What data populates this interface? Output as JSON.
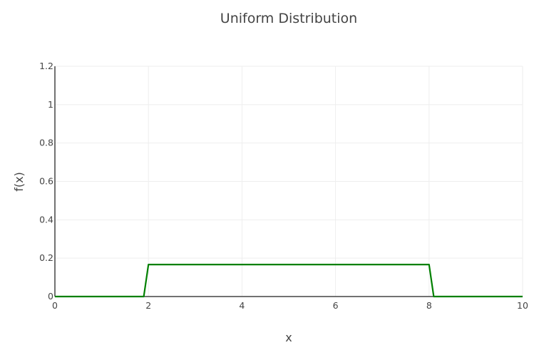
{
  "chart_data": {
    "type": "line",
    "title": "Uniform Distribution",
    "xlabel": "x",
    "ylabel": "f(x)",
    "xlim": [
      0,
      10
    ],
    "ylim": [
      0,
      1.2
    ],
    "x_ticks": [
      0,
      2,
      4,
      6,
      8,
      10
    ],
    "x_tick_labels": [
      "0",
      "2",
      "4",
      "6",
      "8",
      "10"
    ],
    "y_ticks": [
      0,
      0.2,
      0.4,
      0.6,
      0.8,
      1,
      1.2
    ],
    "y_tick_labels": [
      "0",
      "0.2",
      "0.4",
      "0.6",
      "0.8",
      "1",
      "1.2"
    ],
    "grid": true,
    "series": [
      {
        "color": "#008000",
        "x": [
          0,
          1.9,
          2,
          8,
          8.1,
          10
        ],
        "y": [
          0,
          0,
          0.1667,
          0.1667,
          0,
          0
        ]
      }
    ]
  },
  "colors": {
    "grid": "#eeeeee",
    "axis": "#444444",
    "text": "#444444"
  }
}
